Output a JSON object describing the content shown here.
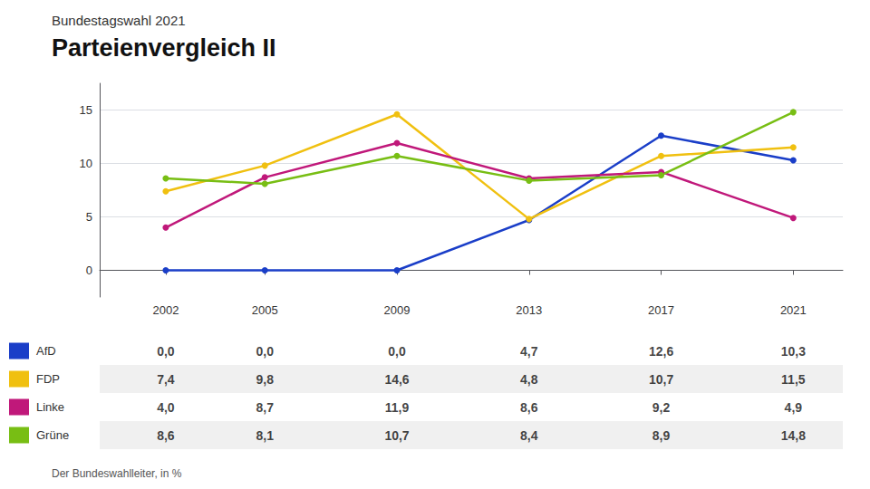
{
  "chart_data": {
    "type": "line",
    "subtitle": "Bundestagswahl 2021",
    "title": "Parteienvergleich II",
    "source": "Der Bundeswahlleiter, in %",
    "x": [
      2002,
      2005,
      2009,
      2013,
      2017,
      2021
    ],
    "xlim": [
      2000.0,
      2022.5
    ],
    "xticks": [
      2002,
      2005,
      2009,
      2013,
      2017,
      2021
    ],
    "ylim": [
      -2.5,
      17.5
    ],
    "yticks": [
      0,
      5,
      10,
      15
    ],
    "grid": true,
    "marker": "circle",
    "series": [
      {
        "name": "AfD",
        "color": "#1a3ec8",
        "values": [
          0.0,
          0.0,
          0.0,
          4.7,
          12.6,
          10.3
        ],
        "value_labels": [
          "0,0",
          "0,0",
          "0,0",
          "4,7",
          "12,6",
          "10,3"
        ]
      },
      {
        "name": "FDP",
        "color": "#f0c010",
        "values": [
          7.4,
          9.8,
          14.6,
          4.8,
          10.7,
          11.5
        ],
        "value_labels": [
          "7,4",
          "9,8",
          "14,6",
          "4,8",
          "10,7",
          "11,5"
        ]
      },
      {
        "name": "Linke",
        "color": "#c0187a",
        "values": [
          4.0,
          8.7,
          11.9,
          8.6,
          9.2,
          4.9
        ],
        "value_labels": [
          "4,0",
          "8,7",
          "11,9",
          "8,6",
          "9,2",
          "4,9"
        ]
      },
      {
        "name": "Grüne",
        "color": "#78be14",
        "values": [
          8.6,
          8.1,
          10.7,
          8.4,
          8.9,
          14.8
        ],
        "value_labels": [
          "8,6",
          "8,1",
          "10,7",
          "8,4",
          "8,9",
          "14,8"
        ]
      }
    ]
  }
}
